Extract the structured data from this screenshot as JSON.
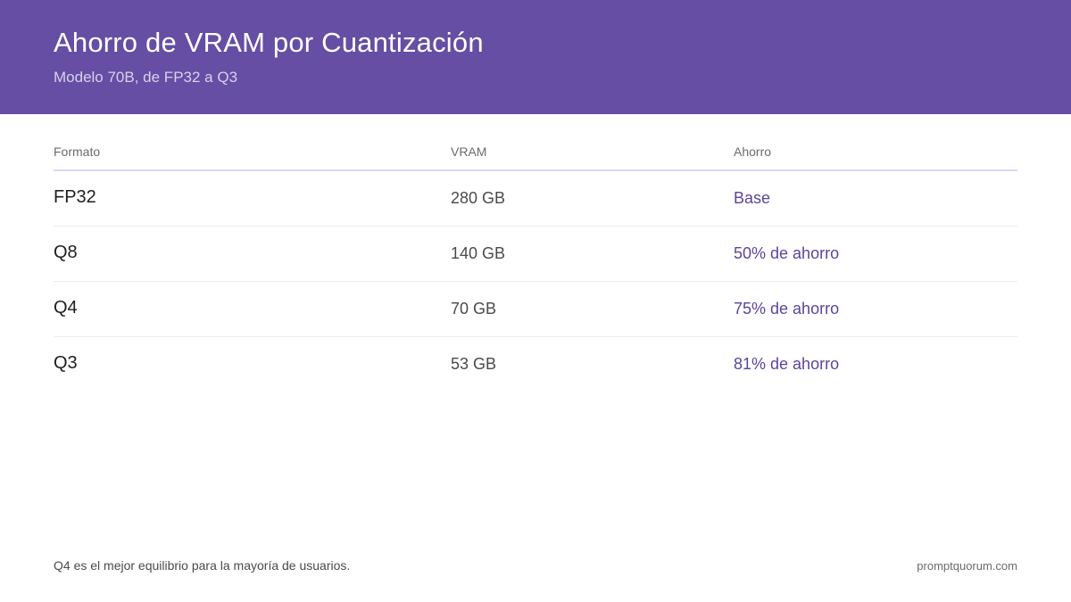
{
  "header": {
    "title": "Ahorro de VRAM por Cuantización",
    "subtitle": "Modelo 70B, de FP32 a Q3"
  },
  "table": {
    "columns": [
      "Formato",
      "VRAM",
      "Ahorro"
    ],
    "rows": [
      {
        "formato": "FP32",
        "vram": "280 GB",
        "ahorro": "Base"
      },
      {
        "formato": "Q8",
        "vram": "140 GB",
        "ahorro": "50% de ahorro"
      },
      {
        "formato": "Q4",
        "vram": "70 GB",
        "ahorro": "75% de ahorro"
      },
      {
        "formato": "Q3",
        "vram": "53 GB",
        "ahorro": "81% de ahorro"
      }
    ]
  },
  "footer": {
    "note": "Q4 es el mejor equilibrio para la mayoría de usuarios.",
    "site": "promptquorum.com"
  },
  "colors": {
    "header_bg": "#654ea3",
    "accent_text": "#5c449c",
    "header_rule": "#ddd6f2"
  }
}
